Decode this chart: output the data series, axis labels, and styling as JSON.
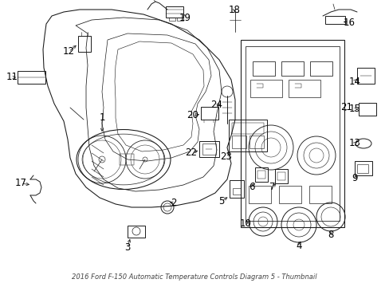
{
  "title": "2016 Ford F-150 Automatic Temperature Controls Diagram 5 - Thumbnail",
  "background_color": "#ffffff",
  "figure_width": 4.89,
  "figure_height": 3.6,
  "dpi": 100,
  "caption": "Diagram 5",
  "line_color": "#1a1a1a",
  "label_color": "#000000",
  "font_size": 8.5,
  "lw": 0.7
}
